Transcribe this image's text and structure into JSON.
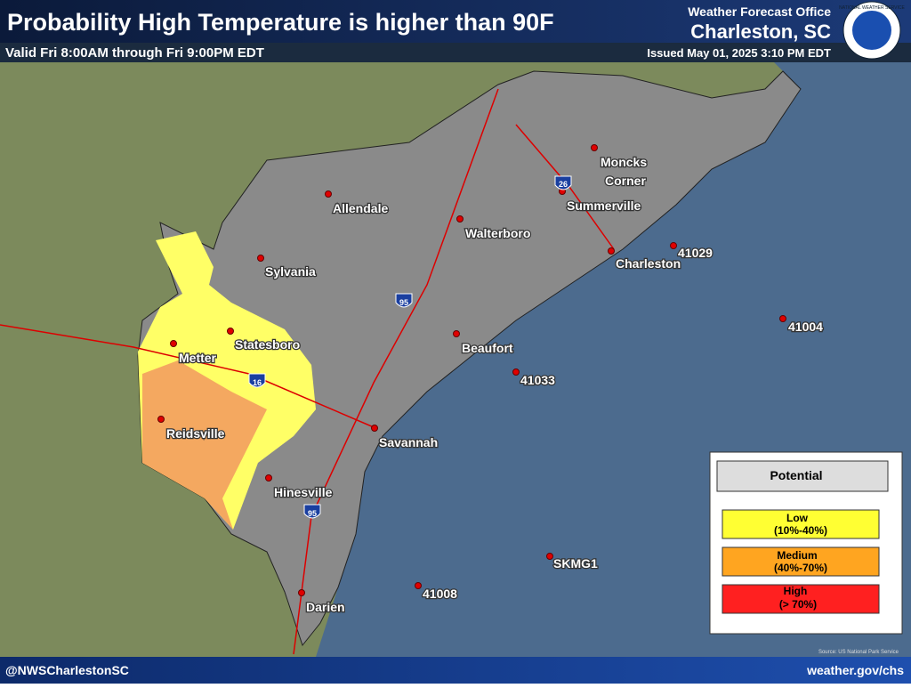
{
  "header": {
    "title": "Probability High Temperature is higher than 90F",
    "valid": "Valid Fri 8:00AM through Fri 9:00PM EDT",
    "office": "Weather Forecast Office",
    "location": "Charleston, SC",
    "issued": "Issued May 01, 2025 3:10 PM EDT",
    "logo_text": "NATIONAL WEATHER SERVICE"
  },
  "places": [
    "Moncks",
    "Corner",
    "Summerville",
    "Allendale",
    "Walterboro",
    "Sylvania",
    "Charleston",
    "41029",
    "41004",
    "Statesboro",
    "Metter",
    "Beaufort",
    "41033",
    "Reidsville",
    "Savannah",
    "Hinesville",
    "SKMG1",
    "41008",
    "Darien"
  ],
  "shields": [
    "26",
    "95",
    "16",
    "95"
  ],
  "legend": {
    "title": "Potential",
    "items": [
      {
        "label": "Low",
        "range": "(10%-40%)"
      },
      {
        "label": "Medium",
        "range": "(40%-70%)"
      },
      {
        "label": "High",
        "range": "(> 70%)"
      }
    ]
  },
  "source": "Source: US National Park Service",
  "footer": {
    "left": "@NWSCharlestonSC",
    "right": "weather.gov/chs"
  }
}
